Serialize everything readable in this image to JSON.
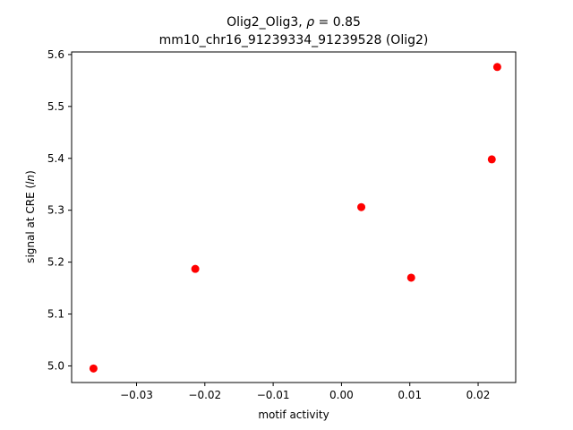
{
  "chart_data": {
    "type": "scatter",
    "title_line1_a": "Olig2_Olig3, ",
    "title_line1_rho": "ρ",
    "title_line1_b": " = 0.85",
    "title_line2": "mm10_chr16_91239334_91239528 (Olig2)",
    "xlabel": "motif activity",
    "ylabel_prefix": "signal at CRE (",
    "ylabel_italic": "ln",
    "ylabel_suffix": ")",
    "xlim": [
      -0.0395,
      0.0255
    ],
    "ylim": [
      4.968,
      5.605
    ],
    "xticks": [
      -0.03,
      -0.02,
      -0.01,
      0.0,
      0.01,
      0.02
    ],
    "xtick_labels": [
      "−0.03",
      "−0.02",
      "−0.01",
      "0.00",
      "0.01",
      "0.02"
    ],
    "yticks": [
      5.0,
      5.1,
      5.2,
      5.3,
      5.4,
      5.5,
      5.6
    ],
    "ytick_labels": [
      "5.0",
      "5.1",
      "5.2",
      "5.3",
      "5.4",
      "5.5",
      "5.6"
    ],
    "grid": false,
    "marker_color": "#ff0000",
    "points": [
      {
        "x": -0.0363,
        "y": 4.995
      },
      {
        "x": -0.0214,
        "y": 5.187
      },
      {
        "x": 0.0029,
        "y": 5.306
      },
      {
        "x": 0.0102,
        "y": 5.17
      },
      {
        "x": 0.022,
        "y": 5.398
      },
      {
        "x": 0.0228,
        "y": 5.576
      }
    ]
  }
}
